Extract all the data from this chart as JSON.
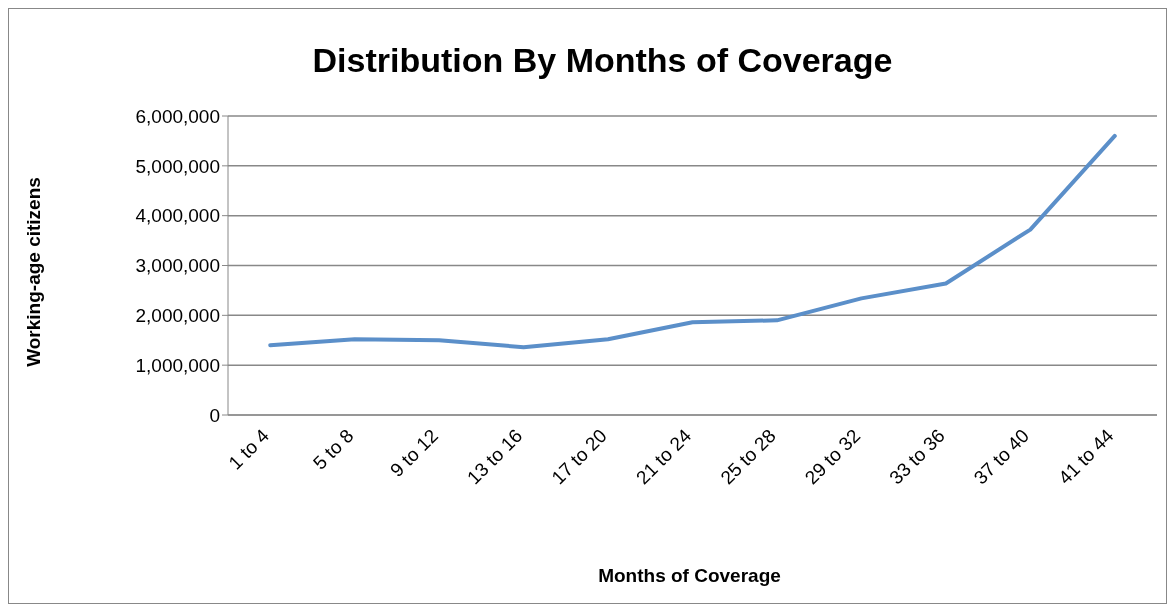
{
  "chart_data": {
    "type": "line",
    "title": "Distribution By Months of Coverage",
    "xlabel": "Months of Coverage",
    "ylabel": "Working-age citizens",
    "categories": [
      "1 to 4",
      "5 to 8",
      "9 to 12",
      "13 to 16",
      "17 to 20",
      "21 to 24",
      "25 to 28",
      "29 to 32",
      "33 to 36",
      "37 to 40",
      "41 to 44"
    ],
    "series": [
      {
        "color": "#5b8fc9",
        "values": [
          1400000,
          1520000,
          1500000,
          1360000,
          1520000,
          1860000,
          1900000,
          2340000,
          2640000,
          3720000,
          5600000
        ]
      }
    ],
    "ylim": [
      0,
      6000000
    ],
    "yticks": [
      0,
      {
        "value": 1000000,
        "label": "1,000,000"
      },
      {
        "value": 2000000,
        "label": "2,000,000"
      },
      {
        "value": 3000000,
        "label": "3,000,000"
      },
      {
        "value": 4000000,
        "label": "4,000,000"
      },
      {
        "value": 5000000,
        "label": "5,000,000"
      },
      {
        "value": 6000000,
        "label": "6,000,000"
      }
    ],
    "grid": "y",
    "legend": false,
    "marker": "none",
    "line_style": "solid"
  }
}
